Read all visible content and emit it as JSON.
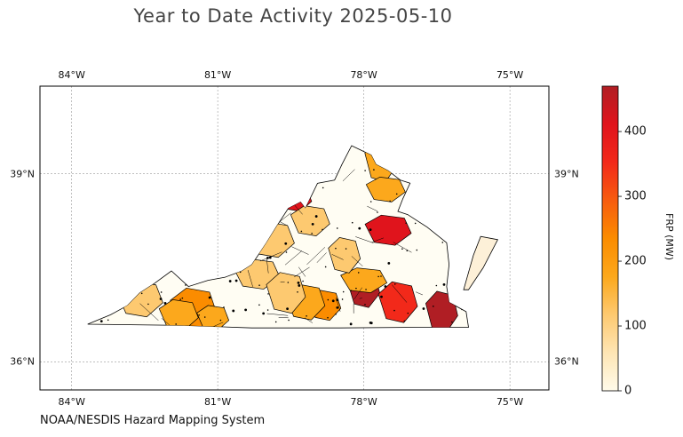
{
  "title": "Year to Date Activity 2025-05-10",
  "credit": "NOAA/NESDIS Hazard Mapping System",
  "map": {
    "extent": {
      "lon_min": -84.65,
      "lon_max": -74.2,
      "lat_min": 35.55,
      "lat_max": 40.4
    },
    "lon_ticks": [
      {
        "value": -84,
        "label": "84°W"
      },
      {
        "value": -81,
        "label": "81°W"
      },
      {
        "value": -78,
        "label": "78°W"
      },
      {
        "value": -75,
        "label": "75°W"
      }
    ],
    "lat_ticks": [
      {
        "value": 39,
        "label": "39°N"
      },
      {
        "value": 36,
        "label": "36°N"
      }
    ],
    "grid": true,
    "region": "Virginia counties"
  },
  "colorbar": {
    "label": "FRP (MW)",
    "min": 0,
    "max": 470,
    "ticks": [
      {
        "value": 0,
        "label": "0"
      },
      {
        "value": 100,
        "label": "100"
      },
      {
        "value": 200,
        "label": "200"
      },
      {
        "value": 300,
        "label": "300"
      },
      {
        "value": 400,
        "label": "400"
      }
    ],
    "colors": [
      "#fffbea",
      "#fee5b4",
      "#fdc970",
      "#fca81c",
      "#fb8c00",
      "#f75c0e",
      "#f2291a",
      "#e0141c",
      "#b01e24"
    ]
  },
  "highlighted_counties": [
    {
      "name": "county-nw-a",
      "lon": -79.4,
      "lat": 38.6,
      "frp": 430
    },
    {
      "name": "county-nw-b",
      "lon": -79.1,
      "lat": 38.25,
      "frp": 120
    },
    {
      "name": "county-nw-c",
      "lon": -79.9,
      "lat": 37.95,
      "frp": 130
    },
    {
      "name": "county-north-a",
      "lon": -77.65,
      "lat": 39.2,
      "frp": 150
    },
    {
      "name": "county-north-b",
      "lon": -77.55,
      "lat": 38.75,
      "frp": 170
    },
    {
      "name": "county-central-a",
      "lon": -77.5,
      "lat": 38.1,
      "frp": 440
    },
    {
      "name": "county-central-b",
      "lon": -78.0,
      "lat": 37.15,
      "frp": 470
    },
    {
      "name": "county-central-c",
      "lon": -77.3,
      "lat": 36.95,
      "frp": 380
    },
    {
      "name": "county-central-d",
      "lon": -78.0,
      "lat": 37.3,
      "frp": 160
    },
    {
      "name": "county-south-a",
      "lon": -78.8,
      "lat": 36.9,
      "frp": 240
    },
    {
      "name": "county-south-b",
      "lon": -79.2,
      "lat": 36.95,
      "frp": 160
    },
    {
      "name": "county-sw-a",
      "lon": -81.5,
      "lat": 36.85,
      "frp": 220
    },
    {
      "name": "county-sw-b",
      "lon": -81.1,
      "lat": 36.7,
      "frp": 200
    },
    {
      "name": "county-sw-c",
      "lon": -81.8,
      "lat": 36.75,
      "frp": 190
    },
    {
      "name": "county-sw-d",
      "lon": -82.6,
      "lat": 37.0,
      "frp": 110
    },
    {
      "name": "county-east-a",
      "lon": -76.4,
      "lat": 36.8,
      "frp": 450
    },
    {
      "name": "county-west-a",
      "lon": -80.7,
      "lat": 37.75,
      "frp": 140
    },
    {
      "name": "county-west-b",
      "lon": -80.2,
      "lat": 37.4,
      "frp": 110
    },
    {
      "name": "county-pied-a",
      "lon": -78.4,
      "lat": 37.7,
      "frp": 110
    },
    {
      "name": "county-pied-b",
      "lon": -79.6,
      "lat": 37.1,
      "frp": 100
    }
  ]
}
